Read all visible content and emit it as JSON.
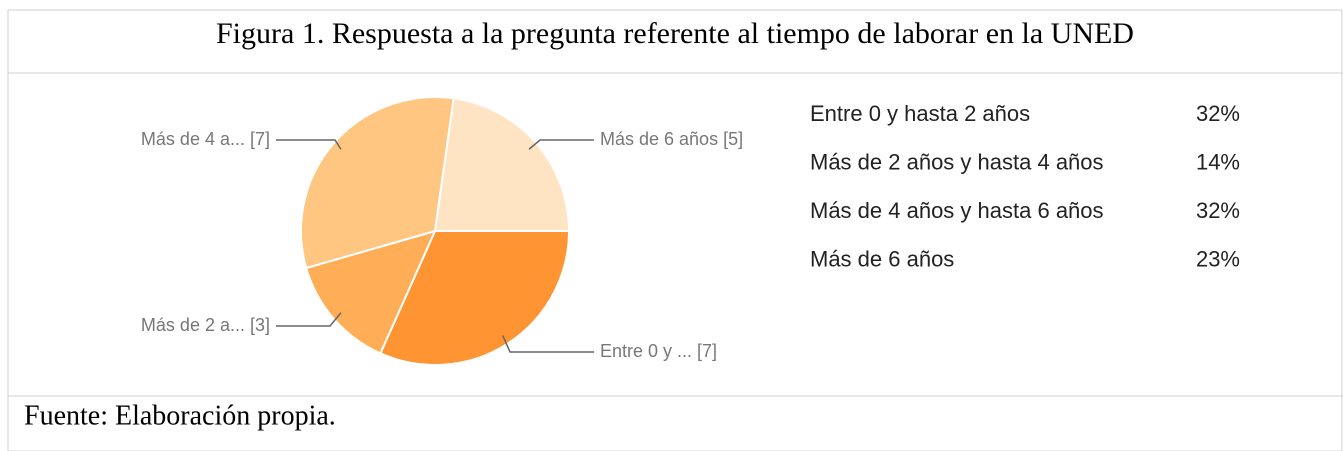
{
  "figure_title": "Figura 1. Respuesta a la pregunta referente al tiempo de laborar en la UNED",
  "source": "Fuente: Elaboración propia.",
  "chart_data": {
    "type": "pie",
    "categories": [
      "Entre 0 y hasta 2 años",
      "Más de 2 años y hasta 4 años",
      "Más de 4 años y hasta 6 años",
      "Más de 6 años"
    ],
    "values": [
      32,
      14,
      32,
      23
    ],
    "value_labels": [
      "32%",
      "14%",
      "32%",
      "23%"
    ],
    "slice_labels": [
      "Entre 0 y ... [7]",
      "Más de 2 a... [3]",
      "Más de 4 a... [7]",
      "Más de 6 años [5]"
    ],
    "colors": [
      "#ff9433",
      "#ffae57",
      "#ffc681",
      "#ffe4c4"
    ]
  }
}
